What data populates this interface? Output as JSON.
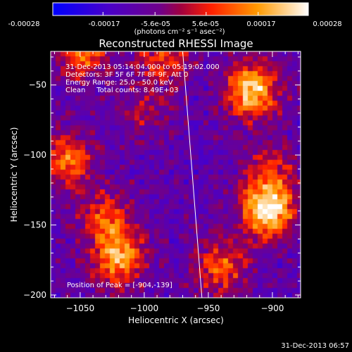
{
  "colorbar": {
    "tick_labels": [
      "-0.00028",
      "-0.00017",
      "-5.6e-05",
      "5.6e-05",
      "0.00017",
      "0.00028"
    ],
    "tick_values": [
      -0.00028,
      -0.00017,
      -5.6e-05,
      5.6e-05,
      0.00017,
      0.00028
    ],
    "unit_label": "(photons cm⁻² s⁻¹ asec⁻²)",
    "range": [
      -0.00028,
      0.00028
    ]
  },
  "chart_data": {
    "type": "heatmap",
    "title": "Reconstructed RHESSI Image",
    "xlabel": "Heliocentric X (arcsec)",
    "ylabel": "Heliocentric Y (arcsec)",
    "xlim": [
      -1073,
      -878
    ],
    "ylim": [
      -202,
      -26
    ],
    "x_ticks": [
      -1050,
      -1000,
      -950,
      -900
    ],
    "y_ticks": [
      -50,
      -100,
      -150,
      -200
    ],
    "x_tick_labels": [
      "−1050",
      "−1000",
      "−950",
      "−900"
    ],
    "y_tick_labels": [
      "−50",
      "−100",
      "−150",
      "−200"
    ],
    "annotations": [
      "31-Dec-2013 05:14:04.000 to 05:19:02.000",
      "Detectors: 3F 5F 6F 7F 8F 9F, Att 0",
      "Energy Range: 25.0 - 50.0 keV",
      "Clean     Total counts: 8.49E+03"
    ],
    "peak_label": "Position of Peak = [-904,-139]",
    "peak_position": [
      -904,
      -139
    ],
    "limb_line": [
      [
        -970,
        -26
      ],
      [
        -955,
        -202
      ]
    ],
    "sources": [
      {
        "x": -904,
        "y": -139,
        "amp": 1.0
      },
      {
        "x": -916,
        "y": -54,
        "amp": 0.85
      },
      {
        "x": -1020,
        "y": -173,
        "amp": 0.7
      },
      {
        "x": -1047,
        "y": -28,
        "amp": 0.55
      },
      {
        "x": -1060,
        "y": -104,
        "amp": 0.55
      },
      {
        "x": -985,
        "y": -30,
        "amp": 0.45
      },
      {
        "x": -1030,
        "y": -145,
        "amp": 0.45
      },
      {
        "x": -940,
        "y": -180,
        "amp": 0.5
      },
      {
        "x": -900,
        "y": -110,
        "amp": 0.35
      },
      {
        "x": -1000,
        "y": -70,
        "amp": 0.25
      }
    ]
  },
  "timestamp": "31-Dec-2013 06:57"
}
